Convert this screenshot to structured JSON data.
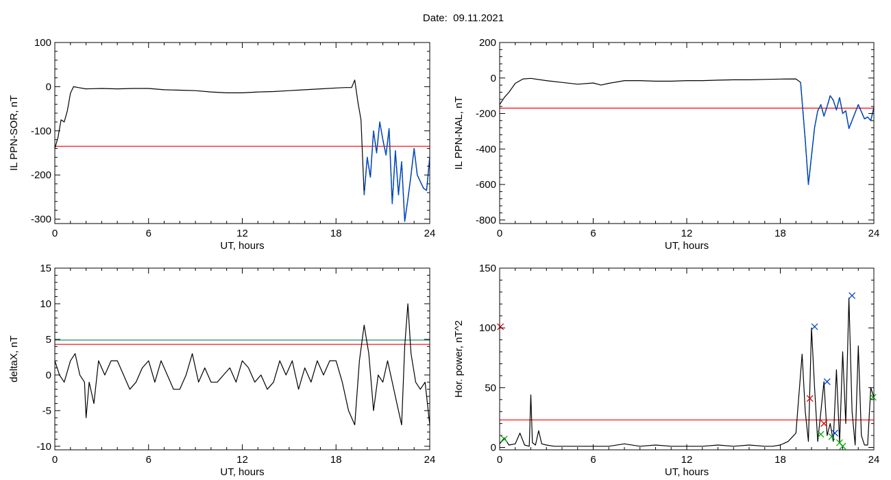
{
  "header": {
    "date_label": "Date:",
    "date_value": "09.11.2021"
  },
  "colors": {
    "line": "#000000",
    "threshold_red": "#ff0000",
    "threshold_green": "#008060",
    "active_segment": "#0055dd",
    "marker_red": "#dd0000",
    "marker_blue": "#0044cc",
    "marker_green": "#00aa00"
  },
  "chart_data": [
    {
      "type": "line",
      "xlabel": "UT, hours",
      "ylabel": "IL PPN-SOR, nT",
      "xlim": [
        0,
        24
      ],
      "ylim": [
        -310,
        100
      ],
      "xticks": [
        0,
        6,
        12,
        18,
        24
      ],
      "yticks": [
        100,
        0,
        -100,
        -200,
        -300
      ],
      "threshold_lines": [
        {
          "y": -135,
          "color": "red"
        }
      ],
      "active_range": [
        19.8,
        24
      ],
      "series": [
        {
          "x": [
            0,
            0.2,
            0.4,
            0.6,
            0.8,
            1.0,
            1.2,
            1.5,
            2,
            3,
            4,
            5,
            6,
            7,
            8,
            9,
            10,
            11,
            12,
            13,
            14,
            15,
            16,
            17,
            18,
            18.6,
            19.0,
            19.2,
            19.4,
            19.6,
            19.8,
            20.0,
            20.2,
            20.4,
            20.6,
            20.8,
            21.0,
            21.2,
            21.4,
            21.6,
            21.8,
            22.0,
            22.2,
            22.4,
            22.6,
            22.8,
            23.0,
            23.2,
            23.4,
            23.6,
            23.8,
            24.0
          ],
          "y": [
            -140,
            -115,
            -75,
            -80,
            -55,
            -15,
            0,
            -2,
            -5,
            -4,
            -5,
            -4,
            -4,
            -7,
            -8,
            -9,
            -12,
            -14,
            -14,
            -12,
            -11,
            -9,
            -7,
            -5,
            -3,
            -2,
            -2,
            15,
            -35,
            -75,
            -245,
            -160,
            -205,
            -100,
            -150,
            -80,
            -120,
            -155,
            -95,
            -265,
            -145,
            -245,
            -170,
            -305,
            -255,
            -200,
            -140,
            -200,
            -215,
            -230,
            -235,
            -160
          ]
        }
      ]
    },
    {
      "type": "line",
      "xlabel": "UT, hours",
      "ylabel": "IL PPN-NAL, nT",
      "xlim": [
        0,
        24
      ],
      "ylim": [
        -820,
        200
      ],
      "xticks": [
        0,
        6,
        12,
        18,
        24
      ],
      "yticks": [
        200,
        0,
        -200,
        -400,
        -600,
        -800
      ],
      "threshold_lines": [
        {
          "y": -170,
          "color": "red"
        }
      ],
      "active_range": [
        19.3,
        24
      ],
      "series": [
        {
          "x": [
            0,
            0.3,
            0.6,
            1.0,
            1.5,
            2,
            3,
            4,
            5,
            6,
            6.5,
            7,
            8,
            9,
            10,
            11,
            12,
            13,
            14,
            15,
            16,
            17,
            18,
            19.0,
            19.3,
            19.6,
            19.8,
            20.0,
            20.2,
            20.4,
            20.6,
            20.8,
            21.0,
            21.2,
            21.4,
            21.6,
            21.8,
            22.0,
            22.2,
            22.4,
            22.6,
            22.8,
            23.0,
            23.2,
            23.4,
            23.6,
            23.8,
            24.0
          ],
          "y": [
            -150,
            -110,
            -80,
            -30,
            -5,
            -2,
            -15,
            -25,
            -35,
            -28,
            -40,
            -30,
            -15,
            -15,
            -18,
            -18,
            -15,
            -15,
            -12,
            -10,
            -10,
            -8,
            -6,
            -5,
            -25,
            -350,
            -600,
            -440,
            -280,
            -185,
            -150,
            -215,
            -160,
            -100,
            -125,
            -180,
            -110,
            -200,
            -185,
            -285,
            -240,
            -195,
            -150,
            -190,
            -230,
            -220,
            -240,
            -165
          ]
        }
      ]
    },
    {
      "type": "line",
      "xlabel": "UT, hours",
      "ylabel": "deltaX, nT",
      "xlim": [
        0,
        24
      ],
      "ylim": [
        -10.5,
        15
      ],
      "xticks": [
        0,
        6,
        12,
        18,
        24
      ],
      "yticks": [
        15,
        10,
        5,
        0,
        -5,
        -10
      ],
      "threshold_lines": [
        {
          "y": 4.9,
          "color": "green"
        },
        {
          "y": 4.3,
          "color": "red"
        }
      ],
      "series": [
        {
          "x": [
            0,
            0.3,
            0.6,
            1.0,
            1.3,
            1.6,
            1.9,
            2.0,
            2.2,
            2.5,
            2.8,
            3.2,
            3.6,
            4.0,
            4.4,
            4.8,
            5.2,
            5.6,
            6.0,
            6.4,
            6.8,
            7.2,
            7.6,
            8.0,
            8.4,
            8.8,
            9.2,
            9.6,
            10.0,
            10.4,
            10.8,
            11.2,
            11.6,
            12.0,
            12.4,
            12.8,
            13.2,
            13.6,
            14.0,
            14.4,
            14.8,
            15.2,
            15.6,
            16.0,
            16.4,
            16.8,
            17.2,
            17.6,
            18.0,
            18.4,
            18.8,
            19.2,
            19.5,
            19.8,
            20.1,
            20.4,
            20.7,
            21.0,
            21.3,
            21.6,
            21.9,
            22.2,
            22.4,
            22.6,
            22.8,
            23.1,
            23.4,
            23.7,
            24.0
          ],
          "y": [
            2,
            0,
            -1,
            2,
            3,
            0,
            -1,
            -6,
            -1,
            -4,
            2,
            0,
            2,
            2,
            0,
            -2,
            -1,
            1,
            2,
            -1,
            2,
            0,
            -2,
            -2,
            0,
            3,
            -1,
            1,
            -1,
            -1,
            0,
            1,
            -1,
            2,
            1,
            -1,
            0,
            -2,
            -1,
            2,
            0,
            2,
            -2,
            1,
            -1,
            2,
            0,
            2,
            2,
            -1,
            -5,
            -7,
            2,
            7,
            3,
            -5,
            0,
            -1,
            2,
            -1,
            -4,
            -7,
            4,
            10,
            3,
            -1,
            -2,
            -1,
            -7
          ]
        }
      ]
    },
    {
      "type": "line",
      "xlabel": "UT, hours",
      "ylabel": "Hor. power, nT^2",
      "xlim": [
        0,
        24
      ],
      "ylim": [
        -2,
        150
      ],
      "xticks": [
        0,
        6,
        12,
        18,
        24
      ],
      "yticks": [
        150,
        100,
        50,
        0
      ],
      "threshold_lines": [
        {
          "y": 23,
          "color": "red"
        }
      ],
      "series": [
        {
          "x": [
            0,
            0.3,
            0.6,
            1.0,
            1.3,
            1.6,
            1.9,
            2.0,
            2.1,
            2.3,
            2.5,
            2.7,
            3.0,
            3.5,
            4,
            5,
            6,
            7,
            8,
            9,
            10,
            11,
            12,
            13,
            14,
            15,
            16,
            17,
            17.5,
            18.0,
            18.5,
            19.0,
            19.4,
            19.6,
            19.8,
            20.0,
            20.2,
            20.4,
            20.6,
            20.8,
            21.0,
            21.2,
            21.4,
            21.6,
            21.8,
            22.0,
            22.2,
            22.4,
            22.6,
            22.8,
            23.0,
            23.2,
            23.4,
            23.6,
            23.8,
            24.0
          ],
          "y": [
            3,
            8,
            2,
            3,
            12,
            2,
            1,
            44,
            4,
            2,
            14,
            3,
            2,
            1,
            1,
            1,
            1,
            1,
            3,
            1,
            2,
            1,
            1,
            1,
            2,
            1,
            2,
            1,
            1,
            2,
            5,
            12,
            78,
            30,
            5,
            100,
            50,
            5,
            30,
            55,
            10,
            20,
            5,
            65,
            4,
            80,
            20,
            125,
            30,
            2,
            85,
            10,
            2,
            2,
            50,
            42
          ]
        }
      ],
      "markers": [
        {
          "x": 0.05,
          "y": 101,
          "color": "red"
        },
        {
          "x": 0.3,
          "y": 7,
          "color": "green"
        },
        {
          "x": 19.9,
          "y": 41,
          "color": "red"
        },
        {
          "x": 20.2,
          "y": 101,
          "color": "blue"
        },
        {
          "x": 20.6,
          "y": 11,
          "color": "green"
        },
        {
          "x": 20.8,
          "y": 20,
          "color": "red"
        },
        {
          "x": 21.0,
          "y": 55,
          "color": "blue"
        },
        {
          "x": 21.3,
          "y": 9,
          "color": "green"
        },
        {
          "x": 21.5,
          "y": 12,
          "color": "blue"
        },
        {
          "x": 21.8,
          "y": 4,
          "color": "green"
        },
        {
          "x": 22.0,
          "y": 1,
          "color": "green"
        },
        {
          "x": 22.6,
          "y": 127,
          "color": "blue"
        },
        {
          "x": 23.95,
          "y": 42,
          "color": "green"
        }
      ]
    }
  ]
}
